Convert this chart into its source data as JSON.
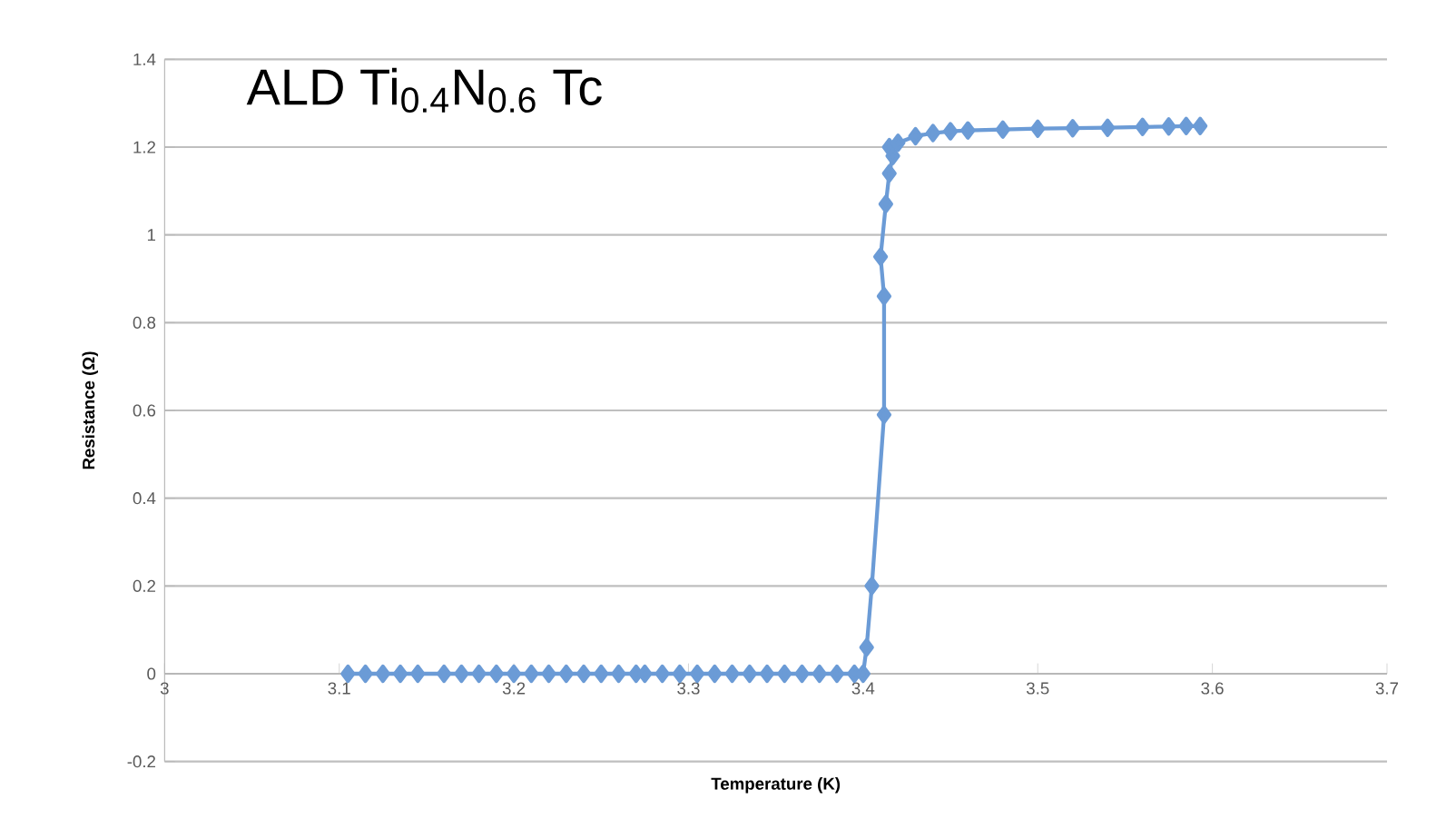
{
  "chart_data": {
    "type": "line",
    "title": "ALD Ti$_{0.4}$N$_{0.6}$ Tc",
    "xlabel": "Temperature (K)",
    "ylabel": "Resistance (Ω)",
    "x": [
      3.105,
      3.115,
      3.125,
      3.135,
      3.145,
      3.16,
      3.17,
      3.18,
      3.19,
      3.2,
      3.21,
      3.22,
      3.23,
      3.24,
      3.25,
      3.26,
      3.27,
      3.275,
      3.285,
      3.295,
      3.305,
      3.315,
      3.325,
      3.335,
      3.345,
      3.355,
      3.365,
      3.375,
      3.385,
      3.395,
      3.4,
      3.402,
      3.405,
      3.412,
      3.412,
      3.41,
      3.413,
      3.415,
      3.417,
      3.415,
      3.42,
      3.43,
      3.44,
      3.45,
      3.46,
      3.48,
      3.5,
      3.52,
      3.54,
      3.56,
      3.575,
      3.585,
      3.593
    ],
    "series": [
      {
        "color": "#6b9bd6",
        "values": [
          0,
          0,
          0,
          0,
          0,
          0,
          0,
          0,
          0,
          0,
          0,
          0,
          0,
          0,
          0,
          0,
          0,
          0,
          0,
          0,
          0,
          0,
          0,
          0,
          0,
          0,
          0,
          0,
          0,
          0,
          0,
          0.06,
          0.2,
          0.59,
          0.86,
          0.95,
          1.07,
          1.14,
          1.18,
          1.2,
          1.21,
          1.225,
          1.232,
          1.236,
          1.238,
          1.24,
          1.242,
          1.243,
          1.244,
          1.246,
          1.247,
          1.248,
          1.248
        ]
      }
    ],
    "xlim": [
      3,
      3.7
    ],
    "ylim": [
      -0.2,
      1.4
    ],
    "xticks": [
      3,
      3.1,
      3.2,
      3.3,
      3.4,
      3.5,
      3.6,
      3.7
    ],
    "yticks": [
      -0.2,
      0,
      0.2,
      0.4,
      0.6,
      0.8,
      1,
      1.2,
      1.4
    ],
    "grid": "y",
    "marker": "diamond",
    "line_style": "solid"
  }
}
